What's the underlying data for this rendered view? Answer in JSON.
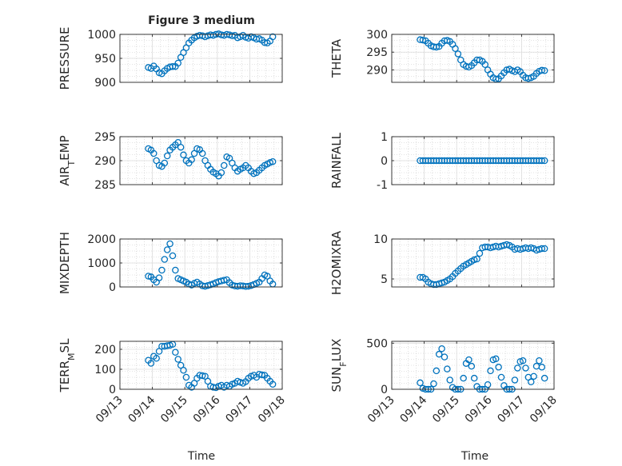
{
  "figure": {
    "title": "Figure 3 medium",
    "xlabel": "Time"
  },
  "colors": {
    "marker": "#0072BD",
    "axis": "#262626",
    "grid": "#C8C8C8"
  },
  "x_tick_labels": [
    "09/13",
    "09/14",
    "09/15",
    "09/16",
    "09/17",
    "09/18"
  ],
  "chart_data": [
    {
      "type": "scatter",
      "panel": "left-1",
      "title": "Figure 3 medium",
      "xlabel": "",
      "ylabel": "PRESSURE",
      "ylim": [
        900,
        1000
      ],
      "yticks": [
        900,
        950,
        1000
      ],
      "grid": true,
      "x": [
        "09/13 21:00",
        "09/13 23:00",
        "09/14 01:00",
        "09/14 03:00",
        "09/14 05:00",
        "09/14 07:00",
        "09/14 09:00",
        "09/14 11:00",
        "09/14 13:00",
        "09/14 15:00",
        "09/14 17:00",
        "09/14 19:00",
        "09/14 21:00",
        "09/14 23:00",
        "09/15 01:00",
        "09/15 03:00",
        "09/15 05:00",
        "09/15 07:00",
        "09/15 09:00",
        "09/15 11:00",
        "09/15 13:00",
        "09/15 15:00",
        "09/15 17:00",
        "09/15 19:00",
        "09/15 21:00",
        "09/15 23:00",
        "09/16 01:00",
        "09/16 03:00",
        "09/16 05:00",
        "09/16 07:00",
        "09/16 09:00",
        "09/16 11:00",
        "09/16 13:00",
        "09/16 15:00",
        "09/16 17:00",
        "09/16 19:00",
        "09/16 21:00",
        "09/16 23:00",
        "09/17 01:00",
        "09/17 03:00",
        "09/17 05:00",
        "09/17 07:00",
        "09/17 09:00",
        "09/17 11:00",
        "09/17 13:00",
        "09/17 15:00",
        "09/17 17:00"
      ],
      "y": [
        931,
        929,
        934,
        928,
        920,
        918,
        924,
        929,
        932,
        933,
        933,
        940,
        952,
        962,
        972,
        982,
        988,
        993,
        996,
        998,
        997,
        995,
        997,
        999,
        998,
        1000,
        1001,
        999,
        998,
        1000,
        999,
        997,
        998,
        993,
        995,
        998,
        994,
        992,
        995,
        993,
        990,
        991,
        988,
        983,
        982,
        986,
        995
      ]
    },
    {
      "type": "scatter",
      "panel": "right-1",
      "xlabel": "",
      "ylabel": "THETA",
      "ylim": [
        286.5,
        300
      ],
      "yticks": [
        290,
        295,
        300
      ],
      "grid": true,
      "x": [
        "09/13 21:00",
        "09/13 23:00",
        "09/14 01:00",
        "09/14 03:00",
        "09/14 05:00",
        "09/14 07:00",
        "09/14 09:00",
        "09/14 11:00",
        "09/14 13:00",
        "09/14 15:00",
        "09/14 17:00",
        "09/14 19:00",
        "09/14 21:00",
        "09/14 23:00",
        "09/15 01:00",
        "09/15 03:00",
        "09/15 05:00",
        "09/15 07:00",
        "09/15 09:00",
        "09/15 11:00",
        "09/15 13:00",
        "09/15 15:00",
        "09/15 17:00",
        "09/15 19:00",
        "09/15 21:00",
        "09/15 23:00",
        "09/16 01:00",
        "09/16 03:00",
        "09/16 05:00",
        "09/16 07:00",
        "09/16 09:00",
        "09/16 11:00",
        "09/16 13:00",
        "09/16 15:00",
        "09/16 17:00",
        "09/16 19:00",
        "09/16 21:00",
        "09/16 23:00",
        "09/17 01:00",
        "09/17 03:00",
        "09/17 05:00",
        "09/17 07:00",
        "09/17 09:00",
        "09/17 11:00",
        "09/17 13:00",
        "09/17 15:00",
        "09/17 17:00"
      ],
      "y": [
        298.5,
        298.4,
        298.2,
        297.5,
        296.8,
        296.5,
        296.4,
        296.6,
        297.5,
        298.2,
        298.3,
        298.0,
        297.2,
        296.0,
        294.5,
        292.8,
        291.5,
        291.0,
        290.8,
        291.2,
        292.0,
        292.8,
        292.8,
        292.4,
        291.5,
        290.0,
        288.8,
        287.8,
        287.4,
        287.5,
        288.3,
        289.2,
        290.0,
        290.2,
        289.8,
        289.5,
        290.0,
        289.5,
        288.5,
        287.8,
        287.6,
        287.8,
        288.2,
        289.0,
        289.6,
        289.9,
        289.8
      ]
    },
    {
      "type": "scatter",
      "panel": "left-2",
      "xlabel": "",
      "ylabel": "AIR_TEMP",
      "ylim": [
        285,
        295
      ],
      "yticks": [
        285,
        290,
        295
      ],
      "grid": true,
      "x": [
        "09/13 21:00",
        "09/13 23:00",
        "09/14 01:00",
        "09/14 03:00",
        "09/14 05:00",
        "09/14 07:00",
        "09/14 09:00",
        "09/14 11:00",
        "09/14 13:00",
        "09/14 15:00",
        "09/14 17:00",
        "09/14 19:00",
        "09/14 21:00",
        "09/14 23:00",
        "09/15 01:00",
        "09/15 03:00",
        "09/15 05:00",
        "09/15 07:00",
        "09/15 09:00",
        "09/15 11:00",
        "09/15 13:00",
        "09/15 15:00",
        "09/15 17:00",
        "09/15 19:00",
        "09/15 21:00",
        "09/15 23:00",
        "09/16 01:00",
        "09/16 03:00",
        "09/16 05:00",
        "09/16 07:00",
        "09/16 09:00",
        "09/16 11:00",
        "09/16 13:00",
        "09/16 15:00",
        "09/16 17:00",
        "09/16 19:00",
        "09/16 21:00",
        "09/16 23:00",
        "09/17 01:00",
        "09/17 03:00",
        "09/17 05:00",
        "09/17 07:00",
        "09/17 09:00",
        "09/17 11:00",
        "09/17 13:00",
        "09/17 15:00",
        "09/17 17:00"
      ],
      "y": [
        292.5,
        292.2,
        291.5,
        290.0,
        289.0,
        288.8,
        289.5,
        291.0,
        292.2,
        292.8,
        293.3,
        293.8,
        292.8,
        291.2,
        290.0,
        289.5,
        290.2,
        291.5,
        292.5,
        292.3,
        291.5,
        290.0,
        289.0,
        288.2,
        287.6,
        287.3,
        286.8,
        287.5,
        289.0,
        290.8,
        290.5,
        289.5,
        288.5,
        287.8,
        288.2,
        288.5,
        289.0,
        288.5,
        287.8,
        287.3,
        287.5,
        288.0,
        288.5,
        289.0,
        289.3,
        289.6,
        289.8
      ]
    },
    {
      "type": "scatter",
      "panel": "right-2",
      "xlabel": "",
      "ylabel": "RAINFALL",
      "ylim": [
        -1,
        1
      ],
      "yticks": [
        -1,
        0,
        1
      ],
      "grid": true,
      "x": [
        "09/13 21:00",
        "09/13 23:00",
        "09/14 01:00",
        "09/14 03:00",
        "09/14 05:00",
        "09/14 07:00",
        "09/14 09:00",
        "09/14 11:00",
        "09/14 13:00",
        "09/14 15:00",
        "09/14 17:00",
        "09/14 19:00",
        "09/14 21:00",
        "09/14 23:00",
        "09/15 01:00",
        "09/15 03:00",
        "09/15 05:00",
        "09/15 07:00",
        "09/15 09:00",
        "09/15 11:00",
        "09/15 13:00",
        "09/15 15:00",
        "09/15 17:00",
        "09/15 19:00",
        "09/15 21:00",
        "09/15 23:00",
        "09/16 01:00",
        "09/16 03:00",
        "09/16 05:00",
        "09/16 07:00",
        "09/16 09:00",
        "09/16 11:00",
        "09/16 13:00",
        "09/16 15:00",
        "09/16 17:00",
        "09/16 19:00",
        "09/16 21:00",
        "09/16 23:00",
        "09/17 01:00",
        "09/17 03:00",
        "09/17 05:00",
        "09/17 07:00",
        "09/17 09:00",
        "09/17 11:00",
        "09/17 13:00",
        "09/17 15:00",
        "09/17 17:00"
      ],
      "y": [
        0,
        0,
        0,
        0,
        0,
        0,
        0,
        0,
        0,
        0,
        0,
        0,
        0,
        0,
        0,
        0,
        0,
        0,
        0,
        0,
        0,
        0,
        0,
        0,
        0,
        0,
        0,
        0,
        0,
        0,
        0,
        0,
        0,
        0,
        0,
        0,
        0,
        0,
        0,
        0,
        0,
        0,
        0,
        0,
        0,
        0,
        0
      ]
    },
    {
      "type": "scatter",
      "panel": "left-3",
      "xlabel": "",
      "ylabel": "MIXDEPTH",
      "ylim": [
        0,
        2000
      ],
      "yticks": [
        0,
        1000,
        2000
      ],
      "grid": true,
      "x": [
        "09/13 21:00",
        "09/13 23:00",
        "09/14 01:00",
        "09/14 03:00",
        "09/14 05:00",
        "09/14 07:00",
        "09/14 09:00",
        "09/14 11:00",
        "09/14 13:00",
        "09/14 15:00",
        "09/14 17:00",
        "09/14 19:00",
        "09/14 21:00",
        "09/14 23:00",
        "09/15 01:00",
        "09/15 03:00",
        "09/15 05:00",
        "09/15 07:00",
        "09/15 09:00",
        "09/15 11:00",
        "09/15 13:00",
        "09/15 15:00",
        "09/15 17:00",
        "09/15 19:00",
        "09/15 21:00",
        "09/15 23:00",
        "09/16 01:00",
        "09/16 03:00",
        "09/16 05:00",
        "09/16 07:00",
        "09/16 09:00",
        "09/16 11:00",
        "09/16 13:00",
        "09/16 15:00",
        "09/16 17:00",
        "09/16 19:00",
        "09/16 21:00",
        "09/16 23:00",
        "09/17 01:00",
        "09/17 03:00",
        "09/17 05:00",
        "09/17 07:00",
        "09/17 09:00",
        "09/17 11:00",
        "09/17 13:00",
        "09/17 15:00",
        "09/17 17:00"
      ],
      "y": [
        450,
        420,
        300,
        200,
        380,
        700,
        1150,
        1550,
        1800,
        1300,
        700,
        350,
        300,
        250,
        200,
        120,
        80,
        150,
        200,
        120,
        50,
        30,
        60,
        90,
        130,
        180,
        220,
        250,
        280,
        300,
        180,
        80,
        40,
        30,
        50,
        40,
        20,
        30,
        60,
        100,
        150,
        200,
        350,
        500,
        450,
        250,
        120
      ]
    },
    {
      "type": "scatter",
      "panel": "right-3",
      "xlabel": "",
      "ylabel": "H2OMIXRA",
      "ylim": [
        4,
        10
      ],
      "yticks": [
        5,
        10
      ],
      "grid": true,
      "x": [
        "09/13 21:00",
        "09/13 23:00",
        "09/14 01:00",
        "09/14 03:00",
        "09/14 05:00",
        "09/14 07:00",
        "09/14 09:00",
        "09/14 11:00",
        "09/14 13:00",
        "09/14 15:00",
        "09/14 17:00",
        "09/14 19:00",
        "09/14 21:00",
        "09/14 23:00",
        "09/15 01:00",
        "09/15 03:00",
        "09/15 05:00",
        "09/15 07:00",
        "09/15 09:00",
        "09/15 11:00",
        "09/15 13:00",
        "09/15 15:00",
        "09/15 17:00",
        "09/15 19:00",
        "09/15 21:00",
        "09/15 23:00",
        "09/16 01:00",
        "09/16 03:00",
        "09/16 05:00",
        "09/16 07:00",
        "09/16 09:00",
        "09/16 11:00",
        "09/16 13:00",
        "09/16 15:00",
        "09/16 17:00",
        "09/16 19:00",
        "09/16 21:00",
        "09/16 23:00",
        "09/17 01:00",
        "09/17 03:00",
        "09/17 05:00",
        "09/17 07:00",
        "09/17 09:00",
        "09/17 11:00",
        "09/17 13:00",
        "09/17 15:00",
        "09/17 17:00"
      ],
      "y": [
        5.2,
        5.2,
        5.0,
        4.6,
        4.4,
        4.3,
        4.3,
        4.4,
        4.5,
        4.6,
        4.8,
        5.0,
        5.3,
        5.7,
        6.0,
        6.3,
        6.6,
        6.8,
        7.0,
        7.2,
        7.4,
        7.5,
        8.2,
        8.9,
        9.0,
        9.0,
        8.9,
        9.0,
        9.1,
        9.0,
        9.1,
        9.2,
        9.3,
        9.2,
        9.0,
        8.7,
        8.8,
        8.7,
        8.8,
        8.9,
        8.8,
        8.9,
        8.8,
        8.6,
        8.7,
        8.8,
        8.8
      ]
    },
    {
      "type": "scatter",
      "panel": "left-4",
      "xlabel": "Time",
      "ylabel": "TERR_MSL",
      "ylim": [
        0,
        240
      ],
      "yticks": [
        0,
        100,
        200
      ],
      "grid": true,
      "x": [
        "09/13 21:00",
        "09/13 23:00",
        "09/14 01:00",
        "09/14 03:00",
        "09/14 05:00",
        "09/14 07:00",
        "09/14 09:00",
        "09/14 11:00",
        "09/14 13:00",
        "09/14 15:00",
        "09/14 17:00",
        "09/14 19:00",
        "09/14 21:00",
        "09/14 23:00",
        "09/15 01:00",
        "09/15 03:00",
        "09/15 05:00",
        "09/15 07:00",
        "09/15 09:00",
        "09/15 11:00",
        "09/15 13:00",
        "09/15 15:00",
        "09/15 17:00",
        "09/15 19:00",
        "09/15 21:00",
        "09/15 23:00",
        "09/16 01:00",
        "09/16 03:00",
        "09/16 05:00",
        "09/16 07:00",
        "09/16 09:00",
        "09/16 11:00",
        "09/16 13:00",
        "09/16 15:00",
        "09/16 17:00",
        "09/16 19:00",
        "09/16 21:00",
        "09/16 23:00",
        "09/17 01:00",
        "09/17 03:00",
        "09/17 05:00",
        "09/17 07:00",
        "09/17 09:00",
        "09/17 11:00",
        "09/17 13:00",
        "09/17 15:00",
        "09/17 17:00"
      ],
      "y": [
        145,
        130,
        165,
        155,
        190,
        215,
        215,
        218,
        220,
        225,
        185,
        150,
        120,
        95,
        60,
        20,
        10,
        30,
        55,
        70,
        68,
        65,
        40,
        15,
        10,
        8,
        15,
        20,
        10,
        20,
        15,
        25,
        30,
        40,
        35,
        30,
        38,
        55,
        65,
        70,
        60,
        75,
        72,
        70,
        55,
        40,
        25
      ]
    },
    {
      "type": "scatter",
      "panel": "right-4",
      "xlabel": "Time",
      "ylabel": "SUN_FLUX",
      "ylim": [
        0,
        520
      ],
      "yticks": [
        0,
        500
      ],
      "grid": true,
      "x": [
        "09/13 21:00",
        "09/13 23:00",
        "09/14 01:00",
        "09/14 03:00",
        "09/14 05:00",
        "09/14 07:00",
        "09/14 09:00",
        "09/14 11:00",
        "09/14 13:00",
        "09/14 15:00",
        "09/14 17:00",
        "09/14 19:00",
        "09/14 21:00",
        "09/14 23:00",
        "09/15 01:00",
        "09/15 03:00",
        "09/15 05:00",
        "09/15 07:00",
        "09/15 09:00",
        "09/15 11:00",
        "09/15 13:00",
        "09/15 15:00",
        "09/15 17:00",
        "09/15 19:00",
        "09/15 21:00",
        "09/15 23:00",
        "09/16 01:00",
        "09/16 03:00",
        "09/16 05:00",
        "09/16 07:00",
        "09/16 09:00",
        "09/16 11:00",
        "09/16 13:00",
        "09/16 15:00",
        "09/16 17:00",
        "09/16 19:00",
        "09/16 21:00",
        "09/16 23:00",
        "09/17 01:00",
        "09/17 03:00",
        "09/17 05:00",
        "09/17 07:00",
        "09/17 09:00",
        "09/17 11:00",
        "09/17 13:00",
        "09/17 15:00",
        "09/17 17:00"
      ],
      "y": [
        70,
        10,
        0,
        0,
        0,
        60,
        200,
        380,
        440,
        350,
        220,
        100,
        20,
        0,
        0,
        0,
        120,
        280,
        320,
        250,
        120,
        30,
        0,
        0,
        0,
        50,
        200,
        320,
        330,
        240,
        130,
        40,
        0,
        0,
        0,
        100,
        230,
        300,
        310,
        230,
        130,
        80,
        140,
        250,
        310,
        240,
        120
      ]
    }
  ]
}
